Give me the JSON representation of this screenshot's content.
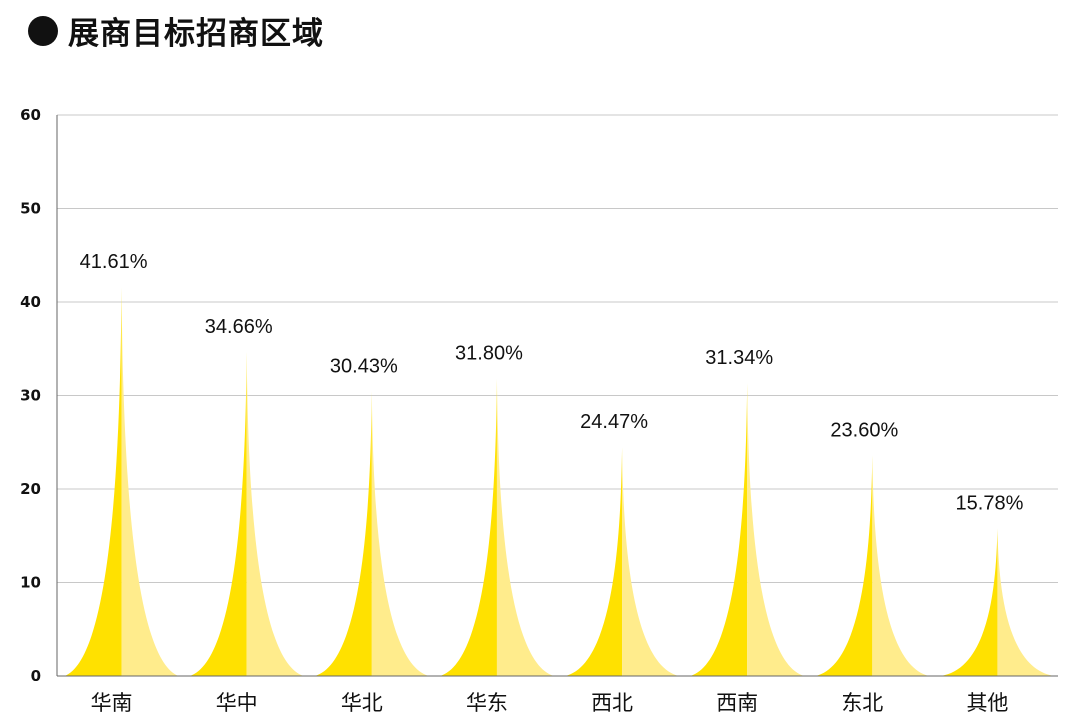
{
  "title": "展商目标招商区域",
  "chart_data": {
    "type": "bar",
    "bar_shape": "pictorial-spike",
    "categories": [
      "华南",
      "华中",
      "华北",
      "华东",
      "西北",
      "西南",
      "东北",
      "其他"
    ],
    "values": [
      41.61,
      34.66,
      30.43,
      31.8,
      24.47,
      31.34,
      23.6,
      15.78
    ],
    "data_labels": [
      "41.61%",
      "34.66%",
      "30.43%",
      "31.80%",
      "24.47%",
      "31.34%",
      "23.60%",
      "15.78%"
    ],
    "y_ticks": [
      "0",
      "10",
      "20",
      "30",
      "40",
      "50",
      "60"
    ],
    "ylim": [
      0,
      60
    ],
    "grid": true,
    "legend": "none",
    "colors": {
      "dark": "#FFE100",
      "light": "#FFEC8C",
      "grid": "#C8C8C8",
      "axis": "#666666"
    }
  }
}
